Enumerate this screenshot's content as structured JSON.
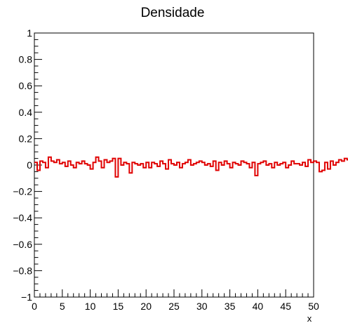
{
  "chart_data": {
    "type": "histogram",
    "title": "Densidade",
    "xlabel": "x",
    "ylabel": "",
    "xlim": [
      0,
      50
    ],
    "ylim": [
      -1,
      1
    ],
    "x_ticks": [
      "0",
      "5",
      "10",
      "15",
      "20",
      "25",
      "30",
      "35",
      "40",
      "45",
      "50"
    ],
    "y_ticks": [
      "1",
      "0.8",
      "0.6",
      "0.4",
      "0.2",
      "0",
      "−0.2",
      "−0.4",
      "−0.6",
      "−0.8",
      "−1"
    ],
    "grid": false,
    "line_color": "#e00000",
    "bin_width": 0.5,
    "values": [
      0.02,
      -0.04,
      0.03,
      0.02,
      -0.02,
      0.06,
      0.03,
      0.02,
      0.04,
      0.01,
      0.02,
      -0.01,
      0.03,
      0.0,
      -0.02,
      0.02,
      0.01,
      0.03,
      0.01,
      0.0,
      -0.03,
      0.02,
      0.06,
      0.03,
      -0.02,
      0.04,
      0.02,
      0.03,
      0.05,
      -0.09,
      0.05,
      0.0,
      0.02,
      0.01,
      -0.06,
      0.02,
      0.01,
      0.0,
      0.01,
      -0.02,
      0.02,
      -0.02,
      0.02,
      0.01,
      -0.01,
      0.03,
      0.01,
      -0.03,
      0.04,
      0.01,
      0.0,
      0.02,
      -0.02,
      0.01,
      0.02,
      0.04,
      0.0,
      0.01,
      0.02,
      0.03,
      0.02,
      0.0,
      0.01,
      -0.01,
      0.03,
      -0.04,
      0.02,
      0.0,
      0.03,
      0.01,
      -0.02,
      0.02,
      0.01,
      0.0,
      0.03,
      0.02,
      0.01,
      -0.02,
      0.02,
      -0.08,
      0.01,
      0.02,
      0.03,
      0.0,
      0.01,
      -0.02,
      0.02,
      0.0,
      0.01,
      0.02,
      -0.02,
      0.0,
      0.03,
      0.01,
      0.01,
      0.0,
      0.02,
      -0.01,
      0.04,
      0.02,
      0.03,
      0.02,
      -0.05,
      -0.04,
      0.02,
      -0.03,
      0.03,
      0.0,
      0.02,
      0.04,
      0.03,
      0.05,
      0.04,
      0.05,
      0.05,
      0.04,
      0.03,
      0.06,
      0.05,
      0.04,
      0.01,
      0.02,
      -0.01,
      0.01,
      0.0,
      -0.02,
      0.02,
      -0.01,
      0.0,
      -0.02,
      0.01,
      0.02,
      -0.01,
      0.02,
      0.03,
      -0.02,
      0.01,
      0.0,
      -0.03,
      0.01
    ]
  }
}
